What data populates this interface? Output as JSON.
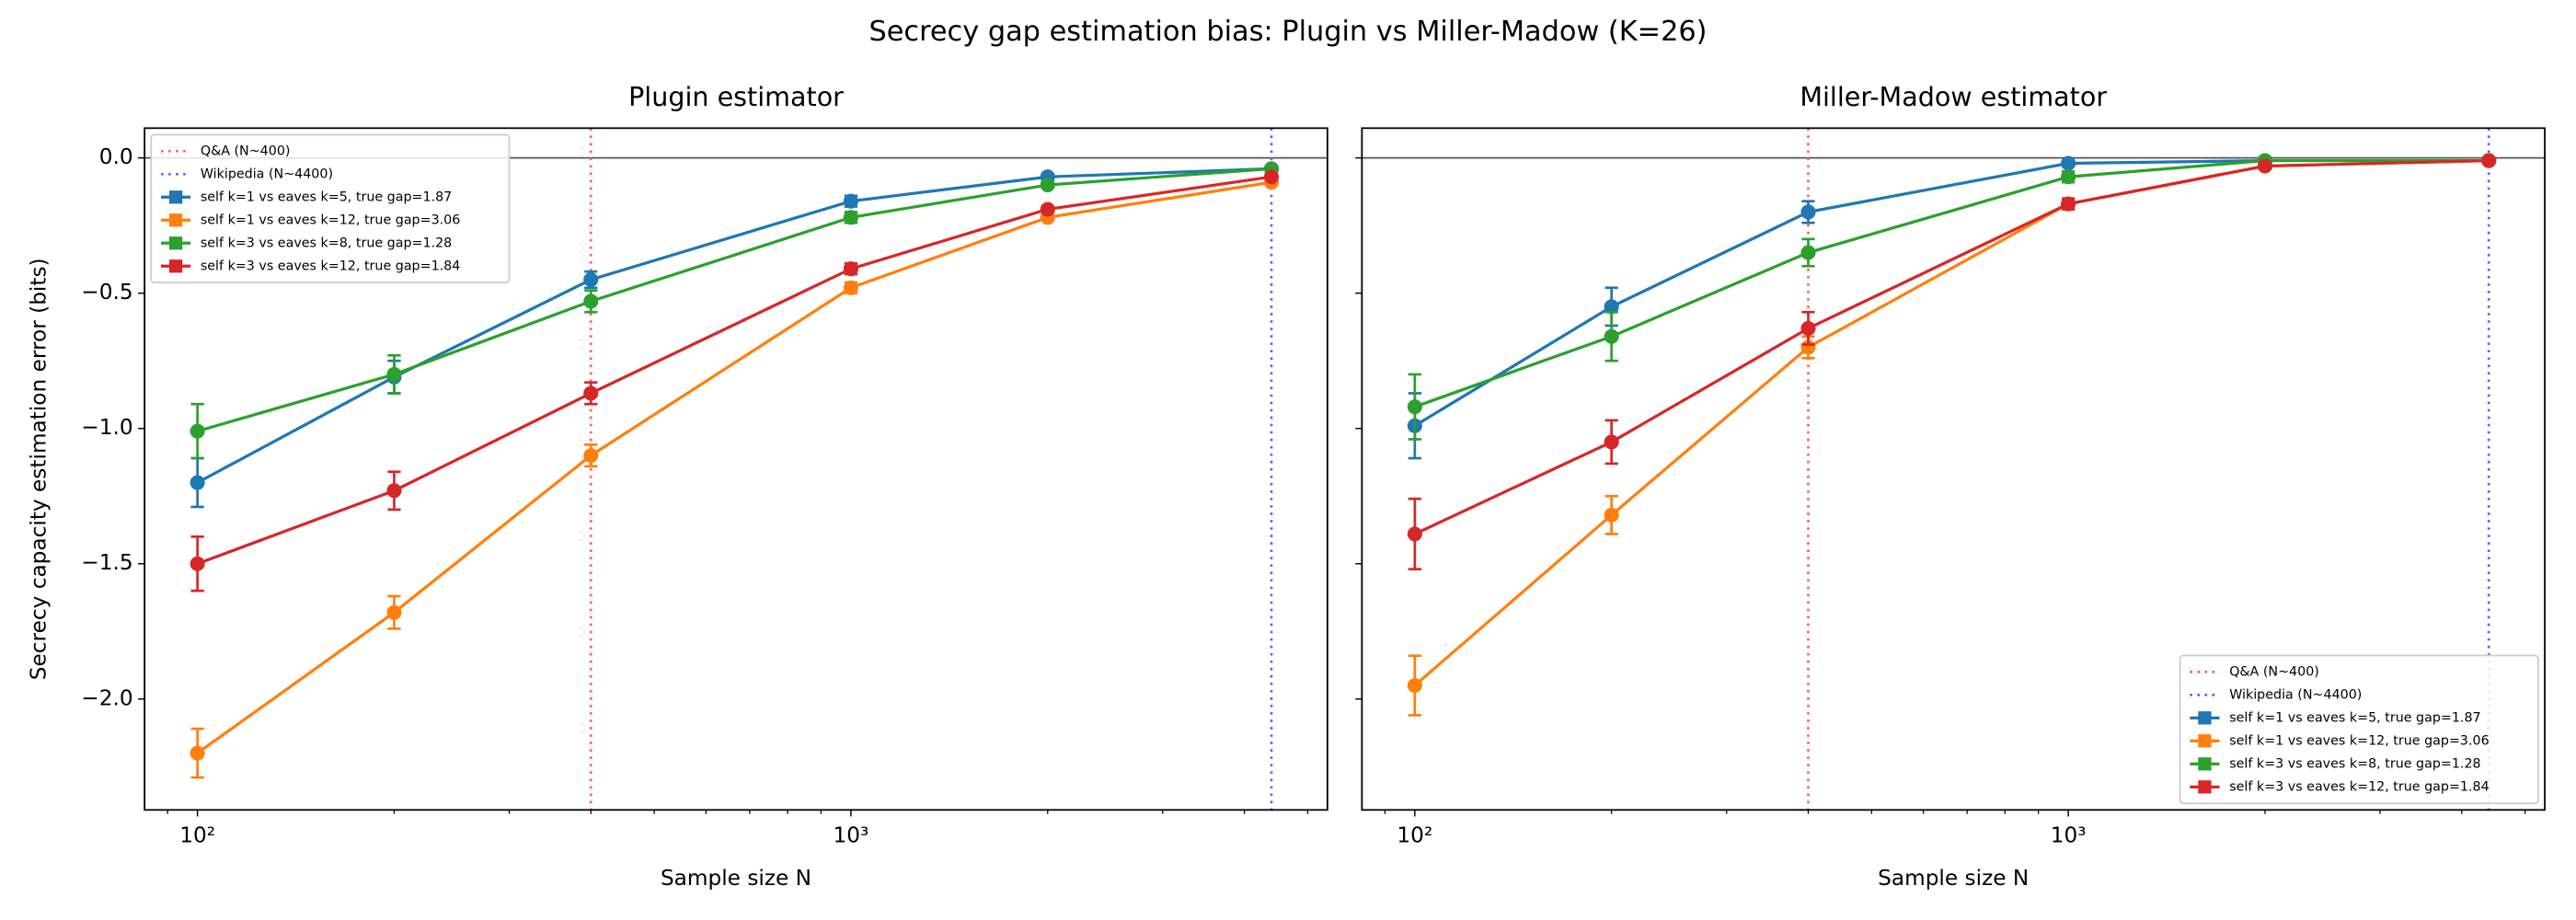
{
  "title": "Secrecy gap estimation bias: Plugin vs Miller-Madow (K=26)",
  "chart_data": [
    {
      "type": "line",
      "title": "Plugin estimator",
      "xlabel": "Sample size N",
      "ylabel": "Secrecy capacity estimation error (bits)",
      "xscale": "log",
      "x": [
        100,
        200,
        400,
        1000,
        2000,
        4400
      ],
      "xlim": [
        83,
        5360
      ],
      "ylim": [
        -2.41,
        0.11
      ],
      "xticks": [
        {
          "value": 100,
          "label": "10²"
        },
        {
          "value": 1000,
          "label": "10³"
        }
      ],
      "yticks": [
        {
          "value": 0,
          "label": "0.0"
        },
        {
          "value": -0.5,
          "label": "−0.5"
        },
        {
          "value": -1,
          "label": "−1.0"
        },
        {
          "value": -1.5,
          "label": "−1.5"
        },
        {
          "value": -2,
          "label": "−2.0"
        }
      ],
      "hline": 0,
      "legend": "upper left",
      "vlines": [
        {
          "x": 400,
          "label": "Q&A (N~400)",
          "color": "#ff6060"
        },
        {
          "x": 4400,
          "label": "Wikipedia (N~4400)",
          "color": "#6060ff"
        }
      ],
      "series": [
        {
          "name": "self k=1 vs eaves k=5, true gap=1.87",
          "color": "#1f77b4",
          "values": [
            -1.2,
            -0.81,
            -0.45,
            -0.16,
            -0.07,
            -0.04
          ],
          "errors": [
            0.09,
            0.06,
            0.03,
            0.02,
            0.01,
            0.01
          ]
        },
        {
          "name": "self k=1 vs eaves k=12, true gap=3.06",
          "color": "#ff7f0e",
          "values": [
            -2.2,
            -1.68,
            -1.1,
            -0.48,
            -0.22,
            -0.09
          ],
          "errors": [
            0.09,
            0.06,
            0.04,
            0.02,
            0.01,
            0.01
          ]
        },
        {
          "name": "self k=3 vs eaves k=8, true gap=1.28",
          "color": "#2ca02c",
          "values": [
            -1.01,
            -0.8,
            -0.53,
            -0.22,
            -0.1,
            -0.04
          ],
          "errors": [
            0.1,
            0.07,
            0.04,
            0.02,
            0.01,
            0.01
          ]
        },
        {
          "name": "self k=3 vs eaves k=12, true gap=1.84",
          "color": "#d62728",
          "values": [
            -1.5,
            -1.23,
            -0.87,
            -0.41,
            -0.19,
            -0.07
          ],
          "errors": [
            0.1,
            0.07,
            0.04,
            0.02,
            0.01,
            0.01
          ]
        }
      ]
    },
    {
      "type": "line",
      "title": "Miller-Madow estimator",
      "xlabel": "Sample size N",
      "xscale": "log",
      "x": [
        100,
        200,
        400,
        1000,
        2000,
        4400
      ],
      "xlim": [
        83,
        5360
      ],
      "ylim": [
        -2.41,
        0.11
      ],
      "xticks": [
        {
          "value": 100,
          "label": "10²"
        },
        {
          "value": 1000,
          "label": "10³"
        }
      ],
      "yticks": [
        0,
        -0.5,
        -1,
        -1.5,
        -2
      ],
      "hline": 0,
      "legend": "lower right",
      "vlines": [
        {
          "x": 400,
          "label": "Q&A (N~400)",
          "color": "#ff6060"
        },
        {
          "x": 4400,
          "label": "Wikipedia (N~4400)",
          "color": "#6060ff"
        }
      ],
      "series": [
        {
          "name": "self k=1 vs eaves k=5, true gap=1.87",
          "color": "#1f77b4",
          "values": [
            -0.99,
            -0.55,
            -0.2,
            -0.02,
            -0.01,
            -0.01
          ],
          "errors": [
            0.12,
            0.07,
            0.04,
            0.01,
            0.01,
            0.01
          ]
        },
        {
          "name": "self k=1 vs eaves k=12, true gap=3.06",
          "color": "#ff7f0e",
          "values": [
            -1.95,
            -1.32,
            -0.7,
            -0.17,
            -0.03,
            -0.01
          ],
          "errors": [
            0.11,
            0.07,
            0.04,
            0.02,
            0.01,
            0.01
          ]
        },
        {
          "name": "self k=3 vs eaves k=8, true gap=1.28",
          "color": "#2ca02c",
          "values": [
            -0.92,
            -0.66,
            -0.35,
            -0.07,
            -0.01,
            -0.01
          ],
          "errors": [
            0.12,
            0.09,
            0.05,
            0.02,
            0.01,
            0.01
          ]
        },
        {
          "name": "self k=3 vs eaves k=12, true gap=1.84",
          "color": "#d62728",
          "values": [
            -1.39,
            -1.05,
            -0.63,
            -0.17,
            -0.03,
            -0.01
          ],
          "errors": [
            0.13,
            0.08,
            0.06,
            0.02,
            0.01,
            0.01
          ]
        }
      ]
    }
  ]
}
